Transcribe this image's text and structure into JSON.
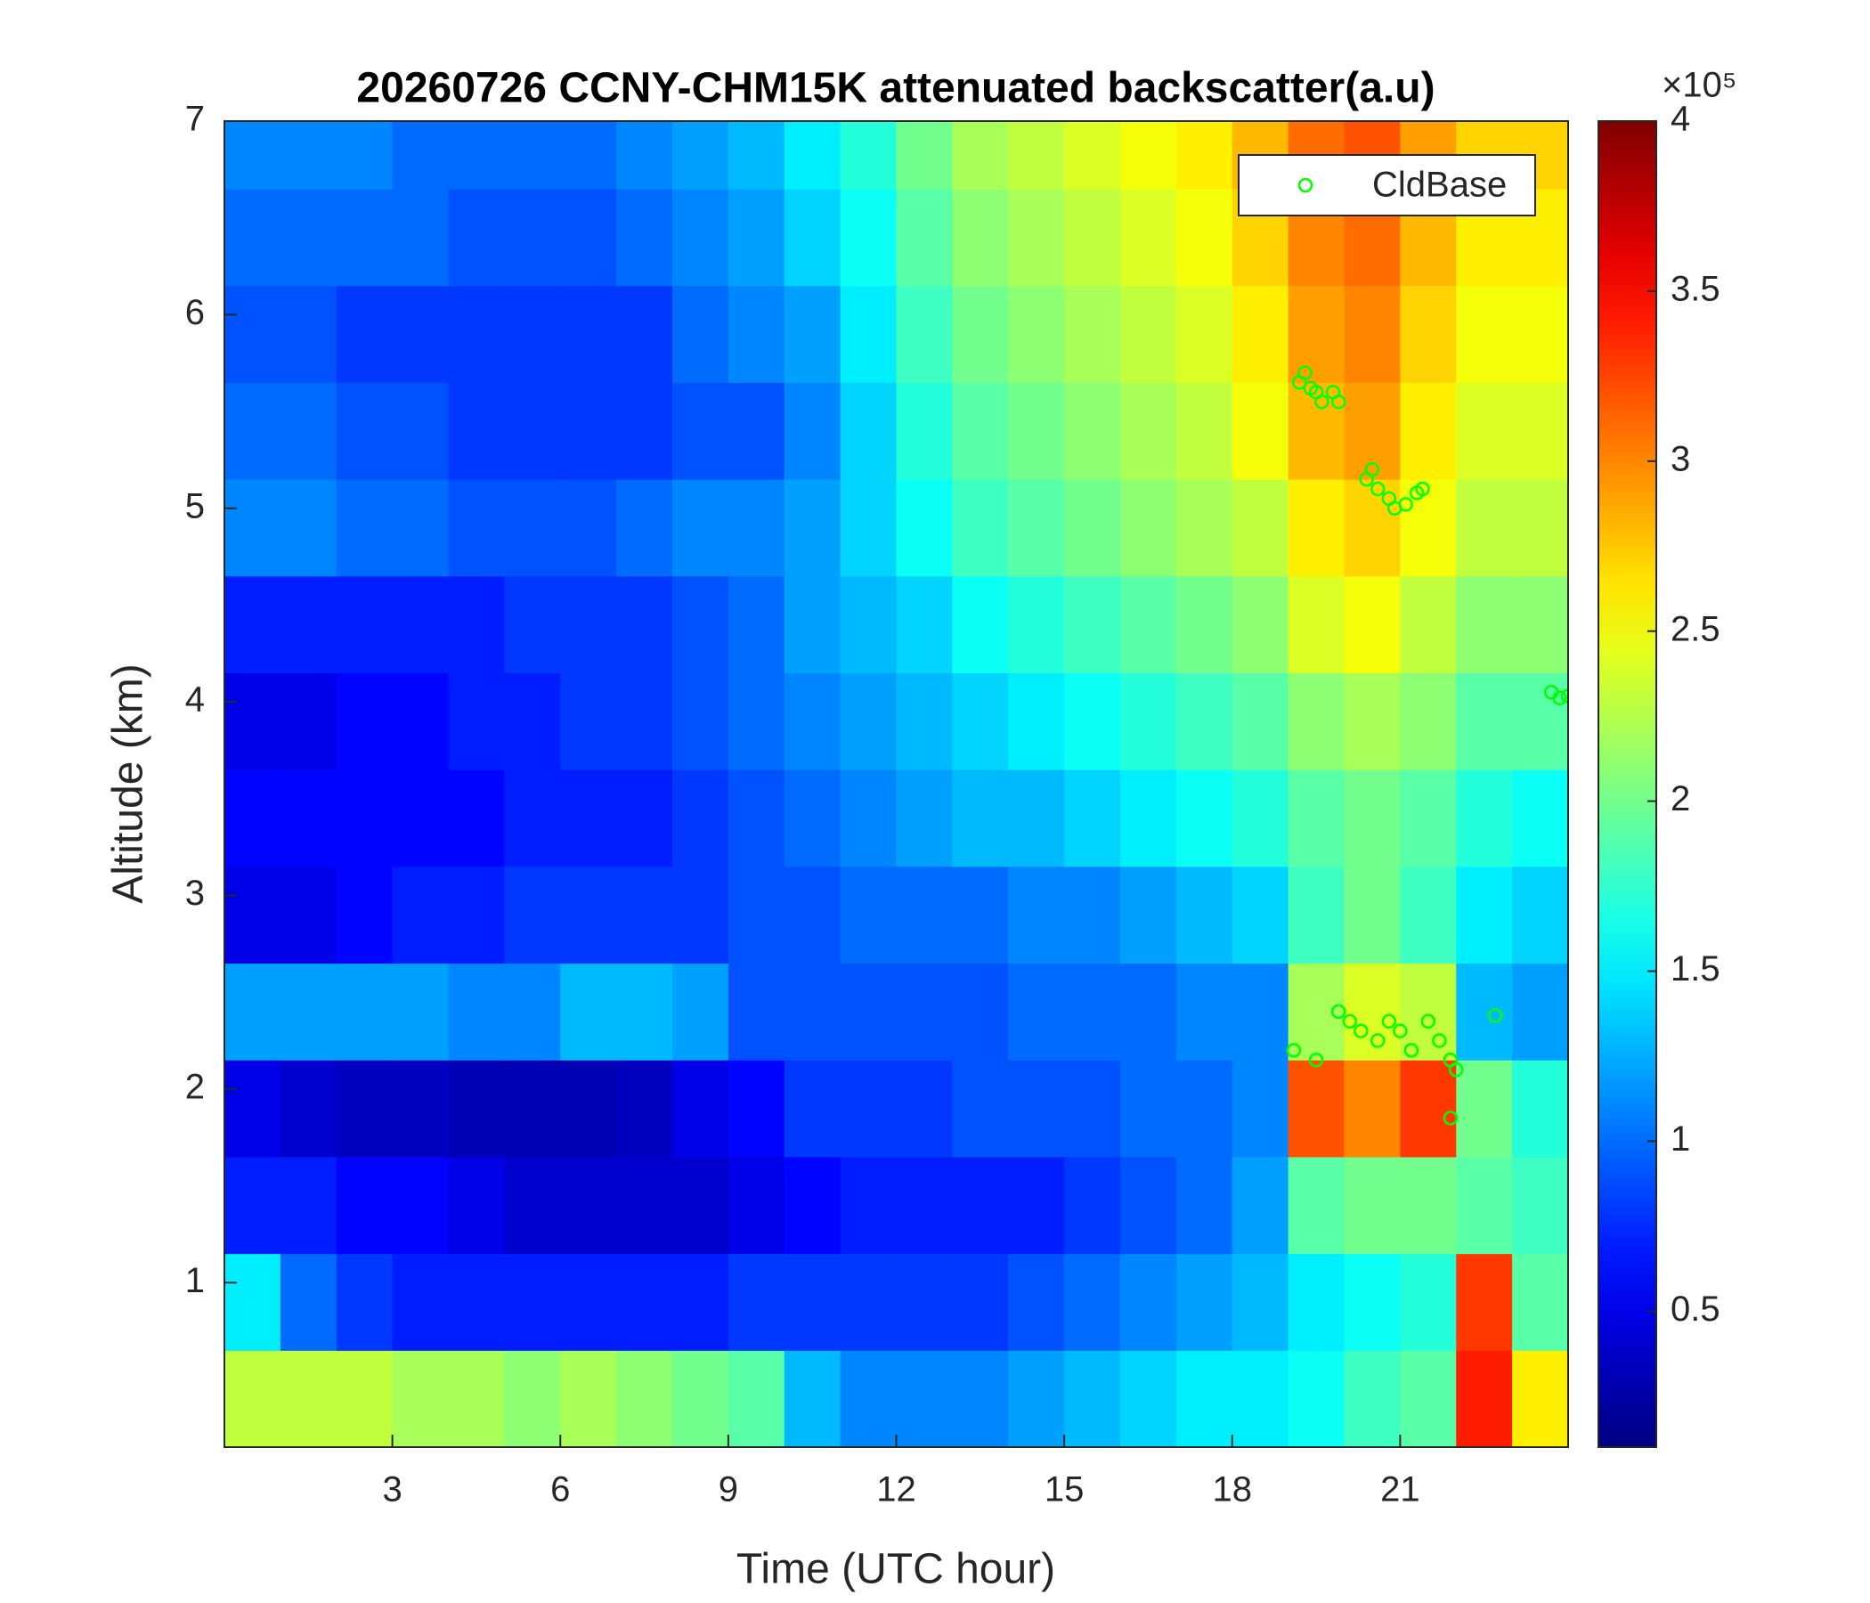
{
  "chart_data": {
    "type": "heatmap",
    "title": "20260726 CCNY-CHM15K attenuated backscatter(a.u)",
    "xlabel": "Time (UTC hour)",
    "ylabel": "Altitude (km)",
    "colormap": "jet",
    "zlim": [
      0.1,
      4
    ],
    "zticks": [
      0.5,
      1,
      1.5,
      2,
      2.5,
      3,
      3.5,
      4
    ],
    "zexponent": "×10⁵",
    "xlim": [
      0,
      24
    ],
    "xticks": [
      3,
      6,
      9,
      12,
      15,
      18,
      21
    ],
    "ylim": [
      0.15,
      7
    ],
    "yticks": [
      1,
      2,
      3,
      4,
      5,
      6,
      7
    ],
    "x": [
      0.5,
      1.5,
      2.5,
      3.5,
      4.5,
      5.5,
      6.5,
      7.5,
      8.5,
      9.5,
      10.5,
      11.5,
      12.5,
      13.5,
      14.5,
      15.5,
      16.5,
      17.5,
      18.5,
      19.5,
      20.5,
      21.5,
      22.5,
      23.5
    ],
    "y": [
      0.4,
      0.9,
      1.4,
      1.9,
      2.4,
      2.9,
      3.4,
      3.9,
      4.4,
      4.9,
      5.4,
      5.9,
      6.4,
      6.9
    ],
    "z": [
      [
        2.3,
        2.3,
        2.3,
        2.2,
        2.2,
        2.1,
        2.2,
        2.1,
        2.0,
        1.9,
        1.3,
        1.1,
        1.1,
        1.1,
        1.2,
        1.3,
        1.4,
        1.5,
        1.5,
        1.6,
        1.8,
        1.9,
        3.4,
        2.6
      ],
      [
        1.5,
        1.0,
        0.8,
        0.7,
        0.7,
        0.7,
        0.7,
        0.7,
        0.7,
        0.8,
        0.8,
        0.8,
        0.8,
        0.8,
        0.9,
        1.0,
        1.1,
        1.2,
        1.3,
        1.5,
        1.6,
        1.7,
        3.3,
        1.9
      ],
      [
        0.7,
        0.7,
        0.6,
        0.6,
        0.5,
        0.4,
        0.4,
        0.4,
        0.4,
        0.5,
        0.6,
        0.7,
        0.7,
        0.7,
        0.7,
        0.8,
        0.9,
        1.0,
        1.2,
        1.9,
        2.0,
        2.0,
        1.9,
        1.8
      ],
      [
        0.5,
        0.4,
        0.35,
        0.35,
        0.3,
        0.3,
        0.3,
        0.35,
        0.5,
        0.6,
        0.8,
        0.8,
        0.8,
        0.9,
        0.9,
        0.9,
        1.0,
        1.0,
        1.1,
        3.2,
        3.0,
        3.3,
        2.0,
        1.7
      ],
      [
        1.2,
        1.2,
        1.2,
        1.2,
        1.1,
        1.1,
        1.3,
        1.3,
        1.2,
        0.9,
        0.9,
        0.9,
        0.9,
        0.9,
        1.0,
        1.0,
        1.0,
        1.1,
        1.1,
        2.2,
        2.4,
        2.3,
        1.3,
        1.2
      ],
      [
        0.5,
        0.5,
        0.6,
        0.7,
        0.7,
        0.8,
        0.8,
        0.8,
        0.8,
        0.9,
        0.9,
        1.0,
        1.0,
        1.0,
        1.1,
        1.1,
        1.2,
        1.3,
        1.4,
        1.8,
        2.0,
        1.8,
        1.5,
        1.4
      ],
      [
        0.6,
        0.6,
        0.6,
        0.6,
        0.6,
        0.7,
        0.7,
        0.7,
        0.8,
        0.9,
        1.0,
        1.1,
        1.2,
        1.3,
        1.3,
        1.4,
        1.5,
        1.6,
        1.7,
        1.9,
        2.0,
        1.9,
        1.7,
        1.6
      ],
      [
        0.5,
        0.5,
        0.6,
        0.6,
        0.7,
        0.7,
        0.8,
        0.8,
        0.9,
        1.0,
        1.1,
        1.2,
        1.3,
        1.4,
        1.5,
        1.6,
        1.7,
        1.8,
        1.9,
        2.1,
        2.2,
        2.1,
        1.9,
        1.9
      ],
      [
        0.7,
        0.7,
        0.7,
        0.7,
        0.7,
        0.8,
        0.8,
        0.8,
        0.9,
        1.0,
        1.2,
        1.3,
        1.4,
        1.6,
        1.7,
        1.8,
        1.9,
        2.0,
        2.1,
        2.4,
        2.5,
        2.3,
        2.1,
        2.1
      ],
      [
        1.1,
        1.1,
        1.0,
        1.0,
        0.9,
        0.9,
        0.9,
        1.0,
        1.1,
        1.1,
        1.2,
        1.4,
        1.6,
        1.8,
        1.9,
        2.0,
        2.1,
        2.2,
        2.3,
        2.6,
        2.7,
        2.5,
        2.3,
        2.3
      ],
      [
        1.0,
        1.0,
        0.9,
        0.9,
        0.8,
        0.8,
        0.8,
        0.8,
        0.9,
        0.9,
        1.1,
        1.4,
        1.7,
        1.9,
        2.0,
        2.1,
        2.2,
        2.3,
        2.5,
        2.8,
        2.9,
        2.6,
        2.4,
        2.4
      ],
      [
        0.9,
        0.9,
        0.8,
        0.8,
        0.8,
        0.8,
        0.8,
        0.8,
        1.0,
        1.1,
        1.2,
        1.5,
        1.8,
        2.0,
        2.1,
        2.2,
        2.3,
        2.4,
        2.6,
        2.9,
        3.0,
        2.7,
        2.5,
        2.5
      ],
      [
        1.0,
        1.0,
        1.0,
        1.0,
        0.9,
        0.9,
        0.9,
        1.0,
        1.1,
        1.2,
        1.4,
        1.6,
        1.9,
        2.1,
        2.2,
        2.3,
        2.4,
        2.5,
        2.7,
        3.0,
        3.1,
        2.8,
        2.6,
        2.6
      ],
      [
        1.1,
        1.1,
        1.1,
        1.0,
        1.0,
        1.0,
        1.0,
        1.1,
        1.2,
        1.3,
        1.5,
        1.7,
        2.0,
        2.2,
        2.3,
        2.4,
        2.5,
        2.6,
        2.8,
        3.1,
        3.2,
        2.9,
        2.7,
        2.7
      ]
    ],
    "legend": "upper right",
    "overlay": {
      "type": "scatter",
      "series": [
        {
          "name": "CldBase",
          "color": "#00ff00",
          "x": [
            19.2,
            19.3,
            19.4,
            19.5,
            19.6,
            19.8,
            19.9,
            20.4,
            20.5,
            20.6,
            20.8,
            20.9,
            21.1,
            21.3,
            21.4,
            23.7,
            23.85,
            24.0,
            19.1,
            19.5,
            19.9,
            20.1,
            20.3,
            20.6,
            20.8,
            21.0,
            21.2,
            21.5,
            21.7,
            21.9,
            22.0,
            21.9,
            22.7
          ],
          "y": [
            5.65,
            5.7,
            5.62,
            5.6,
            5.55,
            5.6,
            5.55,
            5.15,
            5.2,
            5.1,
            5.05,
            5.0,
            5.02,
            5.08,
            5.1,
            4.05,
            4.02,
            4.03,
            2.2,
            2.15,
            2.4,
            2.35,
            2.3,
            2.25,
            2.35,
            2.3,
            2.2,
            2.35,
            2.25,
            2.15,
            2.1,
            1.85,
            2.38
          ]
        }
      ]
    }
  }
}
